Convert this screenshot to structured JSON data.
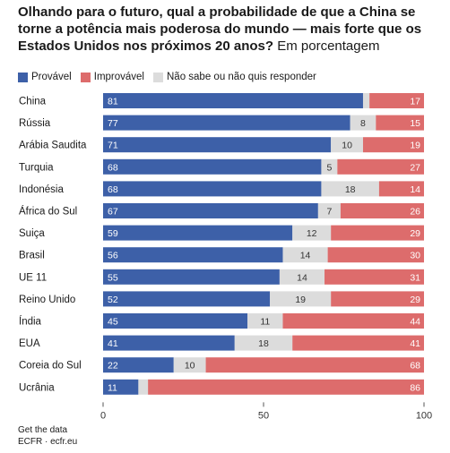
{
  "header": {
    "title_bold": "Olhando para o futuro, qual a probabilidade de que a China se torne a potência mais poderosa do mundo — mais forte que os Estados Unidos nos próximos 20 anos?",
    "title_light": "Em porcentagem"
  },
  "footer": {
    "line1": "Get the data",
    "line2": "ECFR · ecfr.eu"
  },
  "colors": {
    "provavel": "#3d60a8",
    "nao_sabe": "#dcdcdc",
    "improvavel": "#dd6c6c"
  },
  "chart_data": {
    "type": "bar",
    "orientation": "horizontal",
    "stacked": true,
    "xlim": [
      0,
      100
    ],
    "xticks": [
      0,
      50,
      100
    ],
    "legend_position": "top-left",
    "categories": [
      "China",
      "Rússia",
      "Arábia Saudita",
      "Turquia",
      "Indonésia",
      "África do Sul",
      "Suiça",
      "Brasil",
      "UE 11",
      "Reino Unido",
      "Índia",
      "EUA",
      "Coreia do Sul",
      "Ucrânia"
    ],
    "series": [
      {
        "name": "Provável",
        "color": "#3d60a8",
        "values": [
          81,
          77,
          71,
          68,
          68,
          67,
          59,
          56,
          55,
          52,
          45,
          41,
          22,
          11
        ]
      },
      {
        "name": "Não sabe ou não quis responder",
        "color": "#dcdcdc",
        "values": [
          2,
          8,
          10,
          5,
          18,
          7,
          12,
          14,
          14,
          19,
          11,
          18,
          10,
          3
        ],
        "labels": [
          "",
          "8",
          "10",
          "5",
          "18",
          "7",
          "12",
          "14",
          "14",
          "19",
          "11",
          "18",
          "10",
          ""
        ]
      },
      {
        "name": "Improvável",
        "color": "#dd6c6c",
        "values": [
          17,
          15,
          19,
          27,
          14,
          26,
          29,
          30,
          31,
          29,
          44,
          41,
          68,
          86
        ]
      }
    ]
  }
}
